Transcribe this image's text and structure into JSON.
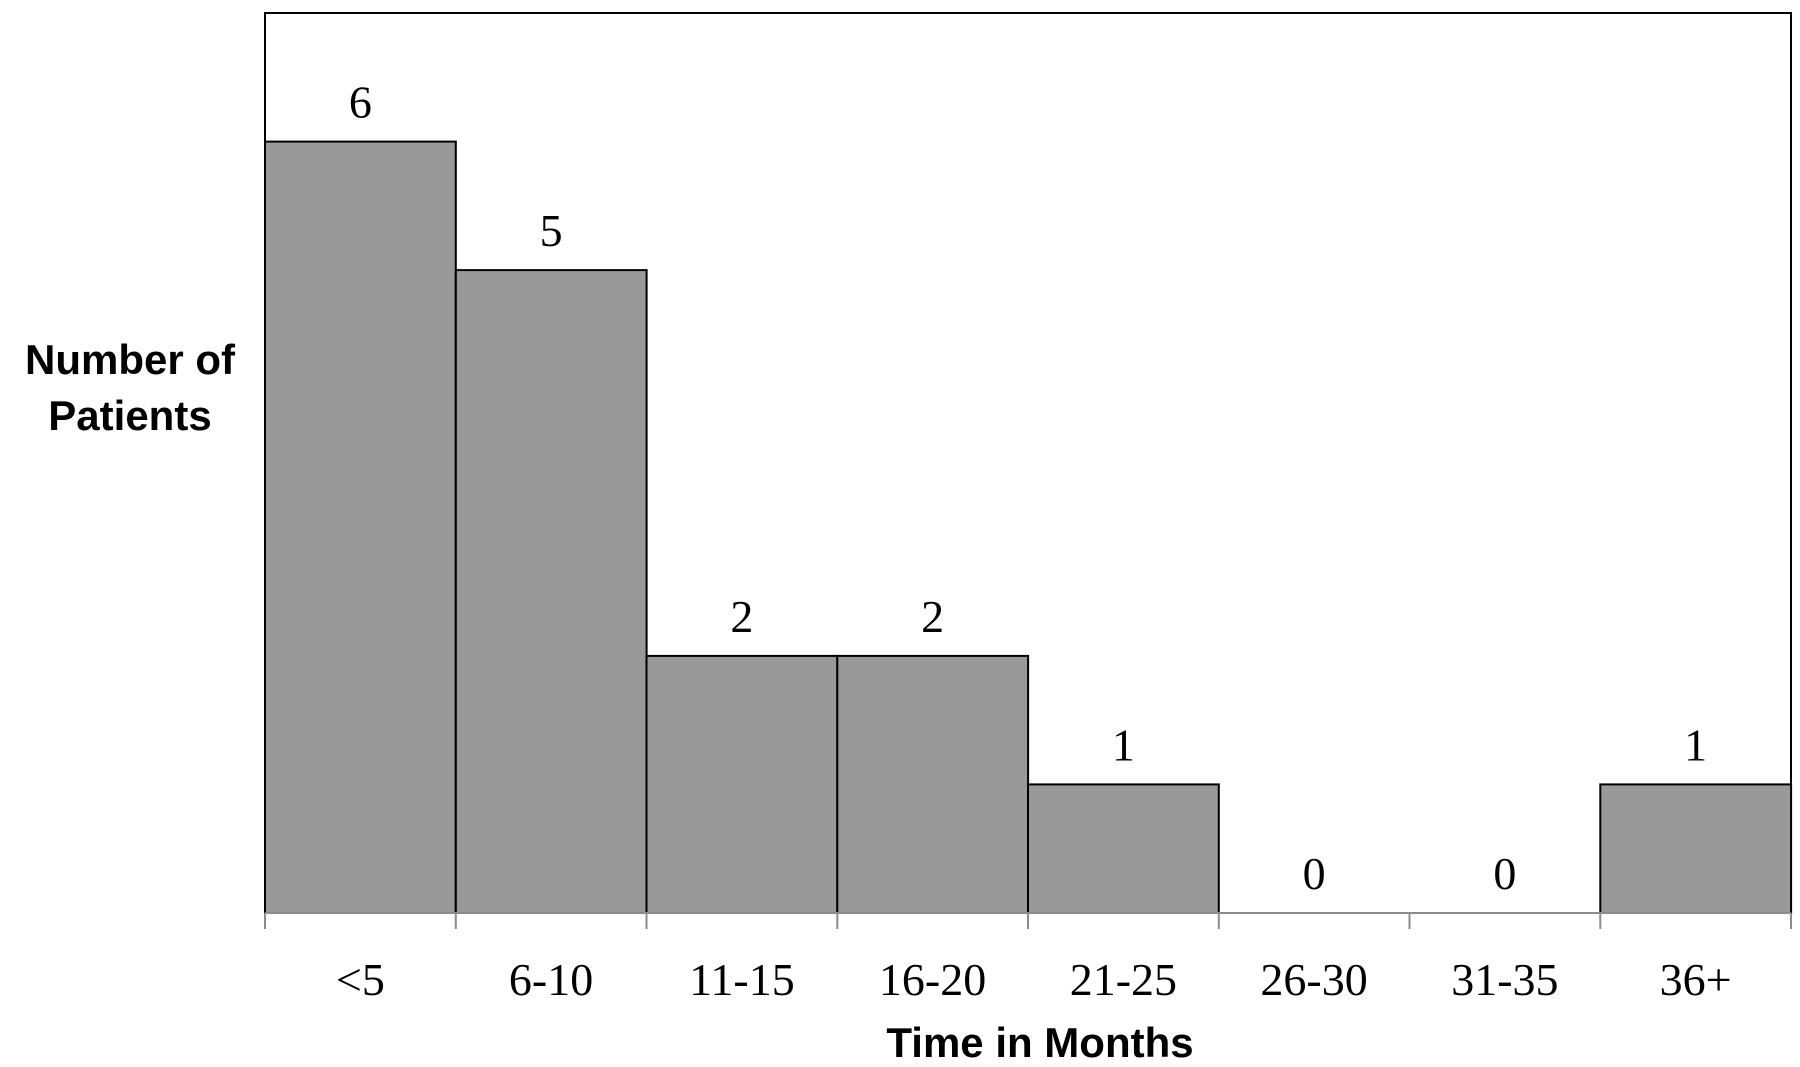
{
  "chart_data": {
    "type": "bar",
    "title": "",
    "xlabel": "Time in Months",
    "ylabel_lines": [
      "Number of",
      "Patients"
    ],
    "categories": [
      "<5",
      "6-10",
      "11-15",
      "16-20",
      "21-25",
      "26-30",
      "31-35",
      "36+"
    ],
    "values": [
      6,
      5,
      2,
      2,
      1,
      0,
      0,
      1
    ],
    "data_labels": [
      "6",
      "5",
      "2",
      "2",
      "1",
      "0",
      "0",
      "1"
    ],
    "ylim": [
      0,
      7
    ],
    "grid": false,
    "legend": "none",
    "colors": {
      "bar_fill": "#999999",
      "bar_stroke": "#000000",
      "axis": "#8c8c8c"
    }
  }
}
